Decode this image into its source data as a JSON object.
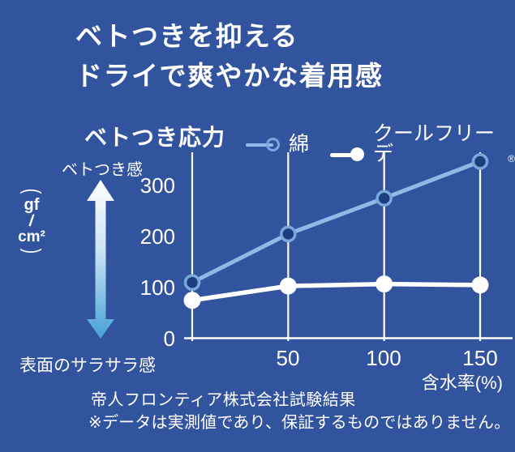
{
  "colors": {
    "background": "#32549E",
    "text": "#FFFFFF",
    "cotton_line": "#8FBAE8",
    "cotton_marker_stroke": "#7AA8DC",
    "cotton_marker_fill": "#1E3D7E",
    "coolfriede_line": "#FFFFFF",
    "grid_line": "#FFFFFF",
    "arrow_top": "#FFFFFF",
    "arrow_mid": "#C9E3F4",
    "arrow_bottom": "#47A1D6"
  },
  "title": {
    "line1": "ベトつきを抑える",
    "line2": "ドライで爽やかな着用感"
  },
  "chart_header": {
    "title": "ベトつき応力"
  },
  "legend": {
    "items": [
      {
        "label": "綿",
        "mark": "",
        "marker": "open-circle"
      },
      {
        "label": "クールフリーデ",
        "mark": "®",
        "marker": "filled-circle"
      }
    ]
  },
  "axis_annotations": {
    "top": "ベトつき感",
    "bottom": "表面のサラサラ感"
  },
  "unit": {
    "open": "(",
    "numerator": "gf",
    "slash": "/",
    "denominator": "cm²",
    "close": ")"
  },
  "footer": {
    "line1": "帝人フロンティア株式会社試験結果",
    "line2": "※データは実測値であり、保証するものではありません。"
  },
  "chart_data": {
    "type": "line",
    "title": "ベトつき応力",
    "x": [
      0,
      50,
      100,
      150
    ],
    "x_tick_labels": [
      "50",
      "100",
      "150"
    ],
    "xlabel": "含水率(%)",
    "ylabel": "gf/cm²",
    "y_ticks": [
      0,
      100,
      200,
      300
    ],
    "ylim": [
      0,
      365
    ],
    "xlim": [
      -5,
      167
    ],
    "grid": "vertical",
    "legend_position": "top",
    "series": [
      {
        "name": "綿",
        "color": "#8FBAE8",
        "marker": "open-circle",
        "values": [
          110,
          205,
          275,
          347
        ]
      },
      {
        "name": "クールフリーデ®",
        "color": "#FFFFFF",
        "marker": "filled-circle",
        "values": [
          75,
          103,
          107,
          105
        ]
      }
    ],
    "source_note": "帝人フロンティア株式会社試験結果"
  }
}
